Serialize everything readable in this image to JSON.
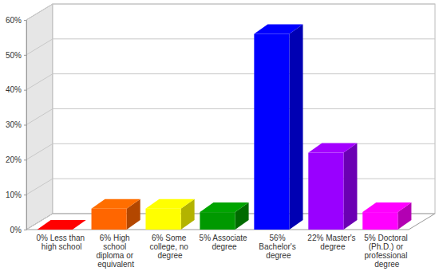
{
  "chart_data": {
    "type": "bar",
    "categories": [
      "0% Less than high school",
      "6% High school diploma or equivalent",
      "6% Some college, no degree",
      "5% Associate degree",
      "56% Bachelor's degree",
      "22% Master's degree",
      "5% Doctoral (Ph.D.) or professional degree"
    ],
    "values": [
      0,
      6,
      6,
      5,
      56,
      22,
      5
    ],
    "colors": [
      "#ff0000",
      "#ff6600",
      "#ffff00",
      "#009900",
      "#0000ff",
      "#9900ff",
      "#ff00ff"
    ],
    "ylim": [
      0,
      60
    ],
    "yticks": [
      {
        "value": 0,
        "label": "0%"
      },
      {
        "value": 10,
        "label": "10%"
      },
      {
        "value": 20,
        "label": "20%"
      },
      {
        "value": 30,
        "label": "30%"
      },
      {
        "value": 40,
        "label": "40%"
      },
      {
        "value": 50,
        "label": "50%"
      },
      {
        "value": 60,
        "label": "60%"
      }
    ],
    "grid": true
  }
}
